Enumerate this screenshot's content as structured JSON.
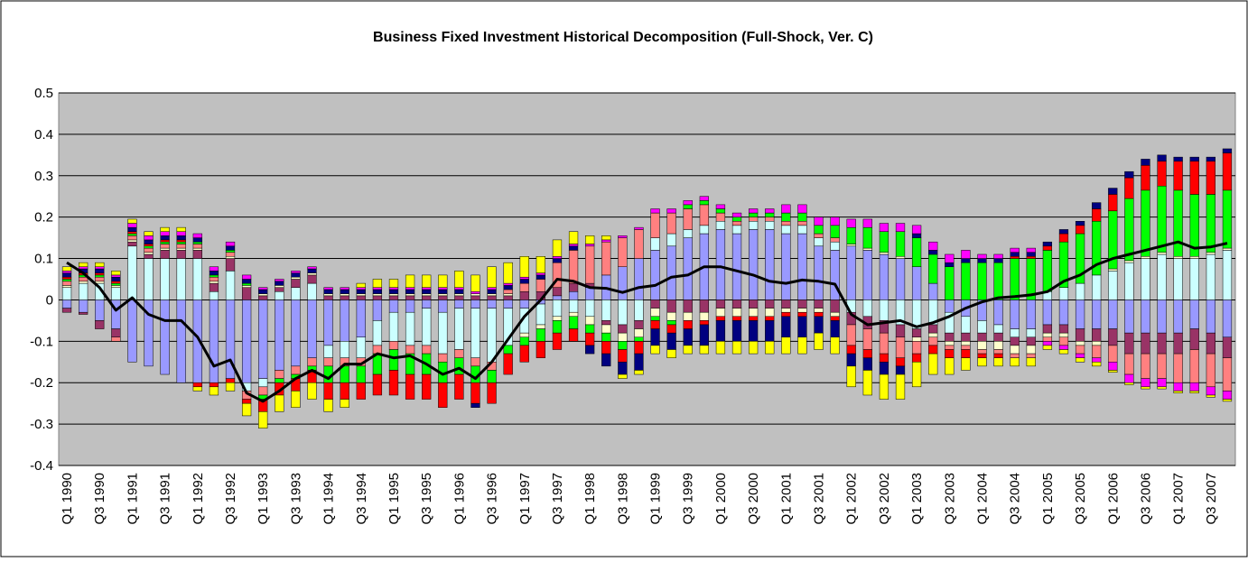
{
  "chart_data": {
    "type": "bar",
    "stacked": true,
    "title": "Business Fixed Investment Historical Decomposition (Full-Shock, Ver. C)",
    "categories": [
      "Q1 1990",
      null,
      "Q3 1990",
      null,
      "Q1 1991",
      null,
      "Q3 1991",
      null,
      "Q1 1992",
      null,
      "Q3 1992",
      null,
      "Q1 1993",
      null,
      "Q3 1993",
      null,
      "Q1 1994",
      null,
      "Q3 1994",
      null,
      "Q1 1995",
      null,
      "Q3 1995",
      null,
      "Q1 1996",
      null,
      "Q3 1996",
      null,
      "Q1 1997",
      null,
      "Q3 1997",
      null,
      "Q1 1998",
      null,
      "Q3 1998",
      null,
      "Q1 1999",
      null,
      "Q3 1999",
      null,
      "Q1 2000",
      null,
      "Q3 2000",
      null,
      "Q1 2001",
      null,
      "Q3 2001",
      null,
      "Q1 2002",
      null,
      "Q3 2002",
      null,
      "Q1 2003",
      null,
      "Q3 2003",
      null,
      "Q1 2004",
      null,
      "Q3 2004",
      null,
      "Q1 2005",
      null,
      "Q3 2005",
      null,
      "Q1 2006",
      null,
      "Q3 2006",
      null,
      "Q1 2007",
      null,
      "Q3 2007",
      null
    ],
    "ylim": [
      -0.4,
      0.5
    ],
    "yticks": [
      -0.4,
      -0.3,
      -0.2,
      -0.1,
      0,
      0.1,
      0.2,
      0.3,
      0.4,
      0.5
    ],
    "grid": true,
    "plot_background": "#c0c0c0",
    "series": [
      {
        "color": "#9999ff",
        "values": [
          -0.02,
          -0.03,
          -0.05,
          -0.07,
          -0.15,
          -0.16,
          -0.18,
          -0.2,
          -0.2,
          -0.2,
          -0.19,
          -0.2,
          -0.19,
          -0.17,
          -0.16,
          -0.14,
          -0.11,
          -0.1,
          -0.09,
          -0.05,
          -0.03,
          -0.03,
          -0.02,
          -0.03,
          -0.02,
          -0.02,
          -0.02,
          -0.02,
          -0.02,
          -0.01,
          0.01,
          0.02,
          0.03,
          0.06,
          0.08,
          0.1,
          0.12,
          0.13,
          0.15,
          0.16,
          0.17,
          0.16,
          0.17,
          0.17,
          0.16,
          0.16,
          0.13,
          0.12,
          0.13,
          0.12,
          0.11,
          0.1,
          0.08,
          0.04,
          -0.03,
          -0.04,
          -0.05,
          -0.06,
          -0.07,
          -0.07,
          -0.06,
          -0.06,
          -0.07,
          -0.07,
          -0.07,
          -0.08,
          -0.08,
          -0.08,
          -0.08,
          -0.07,
          -0.08,
          -0.09
        ]
      },
      {
        "color": "#ccffff",
        "values": [
          0.03,
          0.04,
          0.04,
          0.03,
          0.13,
          0.1,
          0.1,
          0.1,
          0.1,
          0.02,
          0.07,
          -0.02,
          -0.02,
          0.02,
          0.03,
          0.04,
          -0.03,
          -0.04,
          -0.05,
          -0.06,
          -0.07,
          -0.08,
          -0.09,
          -0.1,
          -0.1,
          -0.12,
          -0.13,
          -0.09,
          -0.06,
          -0.05,
          -0.04,
          -0.03,
          -0.04,
          -0.05,
          -0.06,
          -0.05,
          0.03,
          0.03,
          0.02,
          0.02,
          0.02,
          0.02,
          0.02,
          0.02,
          0.02,
          0.02,
          0.02,
          0.02,
          -0.03,
          -0.04,
          -0.05,
          -0.06,
          -0.07,
          -0.06,
          -0.05,
          -0.04,
          -0.03,
          -0.02,
          -0.02,
          -0.02,
          0.02,
          0.03,
          0.04,
          0.06,
          0.07,
          0.09,
          0.1,
          0.11,
          0.1,
          0.1,
          0.11,
          0.12
        ]
      },
      {
        "color": "#993366",
        "values": [
          -0.01,
          -0.005,
          -0.02,
          -0.02,
          0.01,
          0.01,
          0.02,
          0.02,
          0.02,
          0.02,
          0.03,
          0.03,
          0.01,
          0.01,
          0.02,
          0.02,
          0.01,
          0.01,
          0.01,
          0.01,
          0.01,
          0.01,
          0.01,
          0.01,
          0.01,
          0.01,
          0.01,
          0.01,
          0.02,
          0.02,
          0.02,
          0.02,
          0.01,
          -0.01,
          -0.02,
          -0.02,
          -0.02,
          -0.03,
          -0.03,
          -0.03,
          -0.02,
          -0.02,
          -0.02,
          -0.02,
          -0.02,
          -0.02,
          -0.02,
          -0.03,
          -0.03,
          -0.03,
          -0.03,
          -0.03,
          -0.02,
          -0.02,
          -0.02,
          -0.02,
          -0.02,
          -0.02,
          -0.02,
          -0.02,
          -0.02,
          -0.02,
          -0.03,
          -0.03,
          -0.04,
          -0.05,
          -0.05,
          -0.05,
          -0.05,
          -0.05,
          -0.05,
          -0.05
        ]
      },
      {
        "color": "#ffffcc",
        "values": [
          0.005,
          0.005,
          0.005,
          0.005,
          0.005,
          0.005,
          0.005,
          0.005,
          0.005,
          0.005,
          0.005,
          0.005,
          0.005,
          0.005,
          0.005,
          0.005,
          0.005,
          0.005,
          0.005,
          0.005,
          0.005,
          0.005,
          0.005,
          0.005,
          0.005,
          0.005,
          0.005,
          0.005,
          -0.01,
          -0.01,
          -0.01,
          -0.01,
          -0.02,
          -0.02,
          -0.02,
          -0.02,
          -0.02,
          -0.02,
          -0.02,
          -0.02,
          -0.02,
          -0.02,
          -0.02,
          -0.02,
          -0.01,
          -0.01,
          -0.01,
          -0.01,
          0.005,
          0.005,
          0.005,
          0.005,
          -0.01,
          -0.01,
          -0.01,
          -0.01,
          -0.02,
          -0.02,
          -0.02,
          -0.02,
          -0.01,
          -0.01,
          -0.01,
          -0.01,
          0.005,
          0.005,
          0.005,
          0.005,
          0.005,
          0.005,
          0.005,
          0.005
        ]
      },
      {
        "color": "#ff8080",
        "values": [
          0.01,
          0.01,
          0.01,
          -0.01,
          0.01,
          0.01,
          0.01,
          0.01,
          0.01,
          0.01,
          0.01,
          -0.02,
          -0.02,
          -0.02,
          -0.02,
          -0.02,
          -0.02,
          -0.02,
          -0.02,
          -0.02,
          -0.02,
          -0.02,
          -0.02,
          -0.02,
          -0.02,
          -0.02,
          -0.02,
          0.01,
          0.02,
          0.03,
          0.06,
          0.08,
          0.09,
          0.08,
          0.07,
          0.07,
          0.06,
          0.05,
          0.05,
          0.05,
          0.02,
          0.01,
          0.01,
          0.01,
          0.01,
          0.01,
          0.01,
          0.01,
          -0.05,
          -0.05,
          -0.05,
          -0.05,
          -0.03,
          -0.02,
          -0.01,
          -0.01,
          -0.01,
          -0.01,
          -0.01,
          -0.01,
          -0.01,
          -0.02,
          -0.02,
          -0.03,
          -0.04,
          -0.05,
          -0.06,
          -0.06,
          -0.07,
          -0.08,
          -0.08,
          -0.08
        ]
      },
      {
        "color": "#00ff00",
        "values": [
          0.005,
          0.005,
          0.005,
          0.005,
          0.005,
          0.005,
          0.005,
          0.005,
          0.005,
          0.005,
          0.005,
          0.005,
          -0.01,
          -0.01,
          -0.01,
          -0.01,
          -0.04,
          -0.04,
          -0.04,
          -0.05,
          -0.05,
          -0.05,
          -0.05,
          -0.05,
          -0.04,
          -0.04,
          -0.03,
          -0.02,
          -0.02,
          -0.03,
          -0.03,
          -0.03,
          -0.02,
          -0.02,
          -0.02,
          -0.01,
          -0.01,
          -0.01,
          0.01,
          0.01,
          0.01,
          0.01,
          0.01,
          0.01,
          0.02,
          0.02,
          0.02,
          0.03,
          0.04,
          0.05,
          0.05,
          0.06,
          0.07,
          0.07,
          0.08,
          0.09,
          0.09,
          0.09,
          0.1,
          0.1,
          0.1,
          0.11,
          0.12,
          0.13,
          0.14,
          0.15,
          0.16,
          0.16,
          0.16,
          0.15,
          0.14,
          0.14
        ]
      },
      {
        "color": "#ff0000",
        "values": [
          0.005,
          0.005,
          0.005,
          0.005,
          0.005,
          0.005,
          0.005,
          0.005,
          -0.01,
          -0.01,
          -0.01,
          -0.01,
          -0.03,
          -0.03,
          -0.03,
          -0.03,
          -0.04,
          -0.04,
          -0.04,
          -0.05,
          -0.06,
          -0.06,
          -0.06,
          -0.06,
          -0.06,
          -0.05,
          -0.05,
          -0.05,
          -0.04,
          -0.04,
          -0.04,
          -0.03,
          -0.03,
          -0.03,
          -0.03,
          -0.03,
          -0.02,
          -0.02,
          -0.02,
          -0.01,
          -0.01,
          -0.01,
          -0.01,
          -0.01,
          -0.01,
          -0.01,
          -0.01,
          -0.01,
          -0.02,
          -0.02,
          -0.02,
          -0.02,
          -0.02,
          -0.02,
          -0.02,
          -0.02,
          -0.01,
          -0.01,
          0.005,
          0.005,
          0.01,
          0.02,
          0.02,
          0.03,
          0.04,
          0.05,
          0.06,
          0.06,
          0.07,
          0.08,
          0.08,
          0.09
        ]
      },
      {
        "color": "#000080",
        "values": [
          0.01,
          0.01,
          0.01,
          0.01,
          0.01,
          0.01,
          0.01,
          0.01,
          0.01,
          0.01,
          0.01,
          0.01,
          0.01,
          0.01,
          0.01,
          0.01,
          0.01,
          0.01,
          0.01,
          0.01,
          0.01,
          0.01,
          0.01,
          0.01,
          0.01,
          -0.01,
          0.01,
          0.01,
          0.01,
          0.01,
          0.01,
          0.01,
          -0.02,
          -0.03,
          -0.03,
          -0.04,
          -0.04,
          -0.04,
          -0.04,
          -0.05,
          -0.05,
          -0.05,
          -0.05,
          -0.05,
          -0.05,
          -0.05,
          -0.04,
          -0.04,
          -0.03,
          -0.03,
          -0.03,
          -0.02,
          0.01,
          0.01,
          0.01,
          0.01,
          0.01,
          0.01,
          0.01,
          0.01,
          0.01,
          0.01,
          0.01,
          0.015,
          0.015,
          0.015,
          0.015,
          0.015,
          0.01,
          0.01,
          0.01,
          0.01
        ]
      },
      {
        "color": "#ff00ff",
        "values": [
          0.005,
          0.005,
          0.005,
          0.005,
          0.01,
          0.01,
          0.01,
          0.01,
          0.01,
          0.01,
          0.01,
          0.01,
          0.005,
          0.005,
          0.005,
          0.005,
          0.005,
          0.005,
          0.005,
          0.005,
          0.005,
          0.005,
          0.005,
          0.005,
          0.005,
          0.005,
          0.005,
          0.005,
          0.005,
          0.005,
          0.005,
          0.005,
          0.005,
          0.005,
          0.005,
          0.005,
          0.01,
          0.01,
          0.01,
          0.01,
          0.01,
          0.01,
          0.01,
          0.01,
          0.02,
          0.02,
          0.02,
          0.02,
          0.02,
          0.02,
          0.02,
          0.02,
          0.02,
          0.02,
          0.02,
          0.02,
          0.01,
          0.01,
          0.01,
          0.01,
          -0.01,
          -0.01,
          -0.01,
          -0.01,
          -0.02,
          -0.02,
          -0.02,
          -0.02,
          -0.02,
          -0.02,
          -0.02,
          -0.02
        ]
      },
      {
        "color": "#ffff00",
        "values": [
          0.01,
          0.01,
          0.01,
          0.01,
          0.01,
          0.01,
          0.01,
          0.01,
          -0.01,
          -0.02,
          -0.02,
          -0.03,
          -0.04,
          -0.04,
          -0.04,
          -0.04,
          -0.03,
          -0.02,
          0.01,
          0.02,
          0.02,
          0.03,
          0.03,
          0.03,
          0.04,
          0.04,
          0.05,
          0.05,
          0.05,
          0.04,
          0.04,
          0.03,
          0.02,
          0.01,
          -0.01,
          -0.01,
          -0.02,
          -0.02,
          -0.02,
          -0.02,
          -0.03,
          -0.03,
          -0.03,
          -0.03,
          -0.04,
          -0.04,
          -0.04,
          -0.04,
          -0.05,
          -0.06,
          -0.06,
          -0.06,
          -0.06,
          -0.05,
          -0.04,
          -0.03,
          -0.02,
          -0.02,
          -0.02,
          -0.02,
          -0.01,
          -0.01,
          -0.01,
          -0.01,
          -0.005,
          -0.005,
          -0.005,
          -0.005,
          -0.005,
          -0.005,
          -0.005,
          -0.005
        ]
      }
    ],
    "line": {
      "color": "#000000",
      "values": [
        0.09,
        0.065,
        0.03,
        -0.025,
        0.005,
        -0.035,
        -0.05,
        -0.05,
        -0.09,
        -0.16,
        -0.145,
        -0.225,
        -0.245,
        -0.22,
        -0.19,
        -0.17,
        -0.19,
        -0.155,
        -0.155,
        -0.13,
        -0.14,
        -0.135,
        -0.155,
        -0.18,
        -0.165,
        -0.19,
        -0.15,
        -0.095,
        -0.04,
        0.0,
        0.05,
        0.045,
        0.03,
        0.028,
        0.018,
        0.03,
        0.035,
        0.055,
        0.06,
        0.08,
        0.08,
        0.07,
        0.06,
        0.045,
        0.04,
        0.048,
        0.045,
        0.038,
        -0.035,
        -0.06,
        -0.055,
        -0.05,
        -0.065,
        -0.055,
        -0.04,
        -0.02,
        -0.005,
        0.005,
        0.008,
        0.012,
        0.02,
        0.045,
        0.06,
        0.085,
        0.1,
        0.11,
        0.12,
        0.13,
        0.14,
        0.125,
        0.128,
        0.137
      ]
    }
  }
}
